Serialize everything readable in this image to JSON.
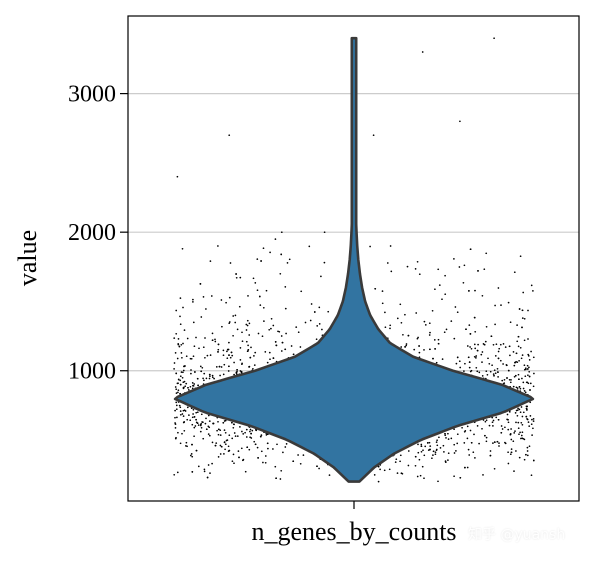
{
  "chart_data": {
    "type": "violin",
    "category": "n_genes_by_counts",
    "ylabel": "value",
    "ylim": [
      60,
      3560
    ],
    "yticks": [
      1000,
      2000,
      3000
    ],
    "ytick_labels": [
      "1000",
      "2000",
      "3000"
    ],
    "grid": "horizontal",
    "violin_color": "#3274a1",
    "edge_color": "#3a3a3a",
    "point_color": "#000000",
    "distribution": {
      "min": 200,
      "max": 3400,
      "mode": 800,
      "profile": [
        {
          "value": 200,
          "width": 0.03
        },
        {
          "value": 300,
          "width": 0.11
        },
        {
          "value": 400,
          "width": 0.22
        },
        {
          "value": 500,
          "width": 0.37
        },
        {
          "value": 600,
          "width": 0.57
        },
        {
          "value": 700,
          "width": 0.83
        },
        {
          "value": 800,
          "width": 1.0
        },
        {
          "value": 900,
          "width": 0.82
        },
        {
          "value": 1000,
          "width": 0.55
        },
        {
          "value": 1100,
          "width": 0.33
        },
        {
          "value": 1200,
          "width": 0.2
        },
        {
          "value": 1300,
          "width": 0.135
        },
        {
          "value": 1400,
          "width": 0.09
        },
        {
          "value": 1500,
          "width": 0.062
        },
        {
          "value": 1600,
          "width": 0.045
        },
        {
          "value": 1700,
          "width": 0.033
        },
        {
          "value": 1800,
          "width": 0.024
        },
        {
          "value": 1900,
          "width": 0.018
        },
        {
          "value": 2000,
          "width": 0.014
        },
        {
          "value": 2100,
          "width": 0.011
        },
        {
          "value": 2300,
          "width": 0.008
        },
        {
          "value": 2600,
          "width": 0.007
        },
        {
          "value": 3000,
          "width": 0.007
        },
        {
          "value": 3400,
          "width": 0.006
        }
      ],
      "outliers": [
        3400,
        3300,
        2800,
        2700,
        2700,
        2400,
        2000,
        2000,
        1950,
        1900,
        1900,
        1880
      ]
    }
  },
  "watermark": "知乎 @yuansh"
}
